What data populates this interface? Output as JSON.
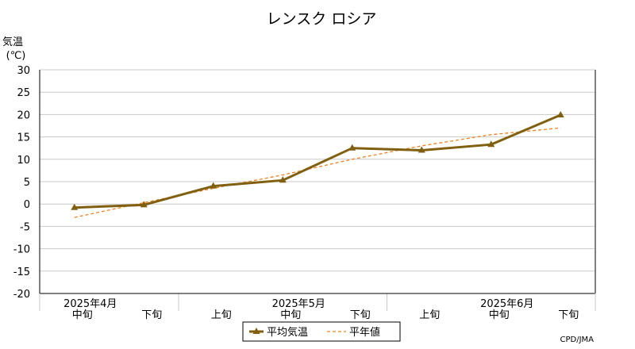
{
  "chart_data": {
    "type": "line",
    "title": "レンスク ロシア",
    "ylabel": "気温",
    "yunit": "(℃)",
    "ylim": [
      -20,
      30
    ],
    "yticks": [
      30,
      25,
      20,
      15,
      10,
      5,
      0,
      -5,
      -10,
      -15,
      -20
    ],
    "grid": true,
    "categories": [
      "中旬",
      "下旬",
      "上旬",
      "中旬",
      "下旬",
      "上旬",
      "中旬",
      "下旬"
    ],
    "month_labels": [
      {
        "label": "2025年4月",
        "index": 0
      },
      {
        "label": "2025年5月",
        "index": 3
      },
      {
        "label": "2025年6月",
        "index": 6
      }
    ],
    "series": [
      {
        "name": "平均気温",
        "color": "#806010",
        "style": "solid-triangle",
        "values": [
          -0.8,
          -0.2,
          4.0,
          5.3,
          12.5,
          12.0,
          13.3,
          19.9
        ]
      },
      {
        "name": "平年値",
        "color": "#f08020",
        "style": "dashed",
        "values": [
          -3.0,
          0.3,
          3.5,
          6.5,
          10.0,
          13.0,
          15.5,
          17.0
        ]
      }
    ],
    "legend_position": "bottom-center",
    "source": "CPD/JMA"
  }
}
